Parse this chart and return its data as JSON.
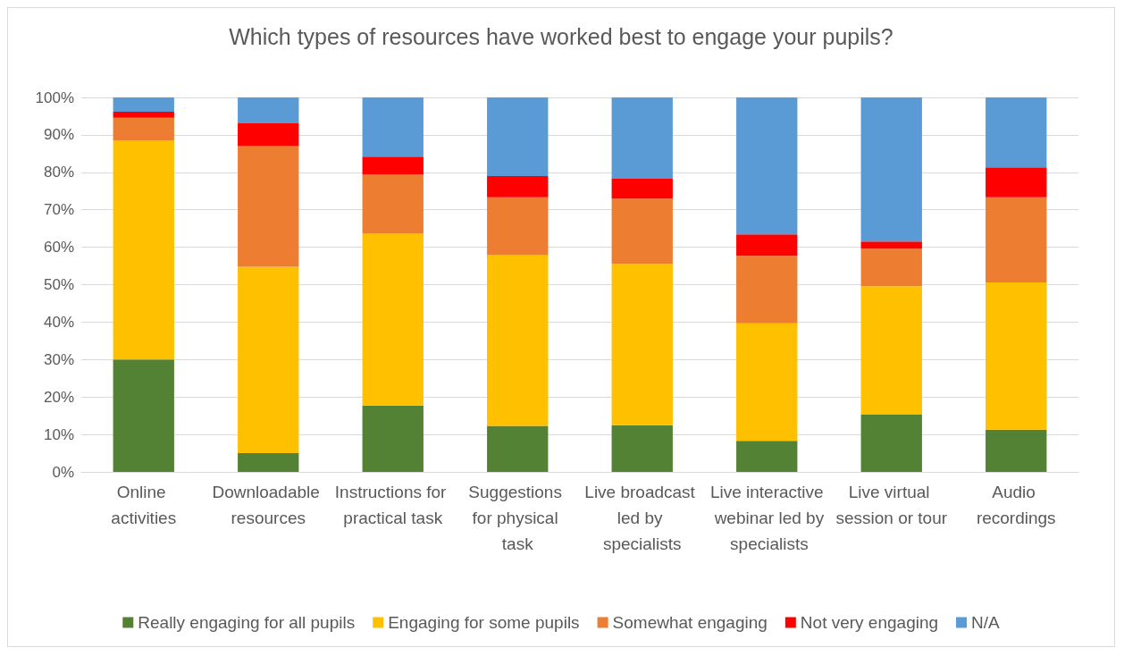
{
  "chart_data": {
    "type": "bar",
    "stacked": true,
    "title": "Which types of resources have worked best to engage your pupils?",
    "categories": [
      "Online activities",
      "Downloadable resources",
      "Instructions for practical task",
      "Suggestions for physical task",
      "Live broadcast led by specialists",
      "Live interactive webinar led by specialists",
      "Live virtual session or tour",
      "Audio recordings"
    ],
    "series": [
      {
        "name": "Really engaging for all pupils",
        "color": "#548235",
        "values": [
          30.0,
          5.0,
          17.7,
          12.3,
          12.5,
          8.3,
          15.4,
          11.3
        ]
      },
      {
        "name": "Engaging for some pupils",
        "color": "#ffc000",
        "values": [
          58.4,
          49.8,
          45.9,
          45.6,
          43.1,
          31.4,
          34.2,
          39.3
        ]
      },
      {
        "name": "Somewhat engaging",
        "color": "#ed7d31",
        "values": [
          6.2,
          32.2,
          15.8,
          15.4,
          17.4,
          18.0,
          10.0,
          22.7
        ]
      },
      {
        "name": "Not very engaging",
        "color": "#ff0000",
        "values": [
          1.6,
          6.1,
          4.8,
          5.7,
          5.3,
          5.7,
          1.9,
          8.0
        ]
      },
      {
        "name": "N/A",
        "color": "#5b9bd5",
        "values": [
          3.8,
          6.9,
          15.8,
          21.0,
          21.7,
          36.6,
          38.5,
          18.7
        ]
      }
    ],
    "ylim": [
      0,
      100
    ],
    "yticks": [
      {
        "value": 0,
        "label": "0%"
      },
      {
        "value": 10,
        "label": "10%"
      },
      {
        "value": 20,
        "label": "20%"
      },
      {
        "value": 30,
        "label": "30%"
      },
      {
        "value": 40,
        "label": "40%"
      },
      {
        "value": 50,
        "label": "50%"
      },
      {
        "value": 60,
        "label": "60%"
      },
      {
        "value": 70,
        "label": "70%"
      },
      {
        "value": 80,
        "label": "80%"
      },
      {
        "value": 90,
        "label": "90%"
      },
      {
        "value": 100,
        "label": "100%"
      }
    ],
    "grid": "y",
    "legend": "bottom"
  }
}
